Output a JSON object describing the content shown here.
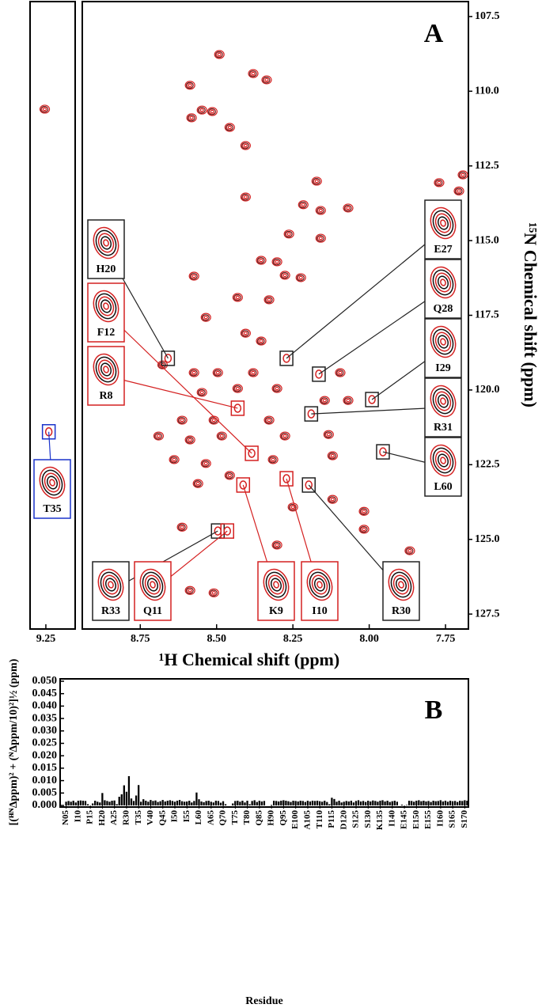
{
  "chart_data": [
    {
      "type": "scatter",
      "xlim": [
        9.32,
        9.12
      ],
      "xticks": [
        9.25
      ],
      "ylim": [
        107,
        128
      ],
      "color": "#d42020",
      "x": [
        9.255
      ],
      "y": [
        110.6
      ],
      "annotations": [
        {
          "label": "T35",
          "x": 9.237,
          "y": 121.4,
          "color": "#1a33cc"
        }
      ]
    },
    {
      "type": "scatter",
      "panel_label": "A",
      "xlabel": "¹H Chemical shift (ppm)",
      "ylabel": "¹⁵N Chemical shift (ppm)",
      "xlim": [
        8.94,
        7.675
      ],
      "ylim": [
        107,
        128
      ],
      "color": "#d42020",
      "xticks": [
        8.75,
        {
          "value": 8.5,
          "label": "8.50"
        },
        8.25,
        {
          "value": 8,
          "label": "8.00"
        },
        7.75
      ],
      "yticks": [
        107.5,
        {
          "value": 110,
          "label": "110.0"
        },
        112.5,
        {
          "value": 115,
          "label": "115.0"
        },
        117.5,
        {
          "value": 120,
          "label": "120.0"
        },
        122.5,
        {
          "value": 125,
          "label": "125.0"
        },
        127.5
      ],
      "x": [
        8.491,
        8.38,
        8.336,
        8.587,
        8.548,
        8.582,
        8.514,
        8.457,
        8.405,
        8.172,
        8.405,
        8.216,
        8.069,
        8.159,
        8.263,
        8.159,
        8.354,
        8.302,
        8.574,
        8.276,
        8.224,
        8.431,
        8.328,
        8.535,
        8.405,
        8.354,
        8.677,
        8.574,
        8.496,
        8.38,
        8.095,
        8.548,
        8.431,
        8.302,
        8.146,
        8.069,
        8.613,
        8.509,
        8.328,
        8.69,
        8.587,
        8.483,
        8.276,
        8.133,
        8.639,
        8.535,
        8.315,
        8.12,
        8.561,
        8.457,
        8.25,
        8.12,
        8.613,
        8.302,
        8.017,
        8.017,
        8.587,
        8.509,
        8.302,
        7.693,
        7.771,
        7.706,
        7.867
      ],
      "y": [
        108.77,
        109.41,
        109.62,
        109.8,
        110.63,
        110.89,
        110.68,
        111.21,
        111.82,
        113.01,
        113.54,
        113.8,
        113.91,
        113.99,
        114.78,
        114.92,
        115.66,
        115.71,
        116.19,
        116.16,
        116.24,
        116.9,
        116.98,
        117.57,
        118.1,
        118.36,
        119.16,
        119.42,
        119.42,
        119.42,
        119.42,
        120.08,
        119.95,
        119.95,
        120.35,
        120.35,
        121.01,
        121.01,
        121.01,
        121.54,
        121.67,
        121.54,
        121.54,
        121.49,
        122.33,
        122.46,
        122.33,
        122.2,
        123.13,
        122.86,
        123.92,
        123.66,
        124.59,
        125.19,
        124.06,
        124.66,
        126.71,
        126.79,
        126.04,
        112.8,
        113.06,
        113.34,
        125.38
      ],
      "annotations": [
        {
          "label": "H20",
          "x": 8.659,
          "y": 118.94,
          "color": "#222"
        },
        {
          "label": "F12",
          "x": 8.385,
          "y": 122.12,
          "color": "#d42020"
        },
        {
          "label": "R8",
          "x": 8.431,
          "y": 120.61,
          "color": "#d42020"
        },
        {
          "label": "E27",
          "x": 8.271,
          "y": 118.94,
          "color": "#222"
        },
        {
          "label": "Q28",
          "x": 8.165,
          "y": 119.47,
          "color": "#222"
        },
        {
          "label": "I29",
          "x": 7.991,
          "y": 120.32,
          "color": "#222"
        },
        {
          "label": "R31",
          "x": 8.19,
          "y": 120.8,
          "color": "#222"
        },
        {
          "label": "L60",
          "x": 7.955,
          "y": 122.07,
          "color": "#222"
        },
        {
          "label": "R33",
          "x": 8.496,
          "y": 124.72,
          "color": "#222"
        },
        {
          "label": "Q11",
          "x": 8.465,
          "y": 124.72,
          "color": "#d42020"
        },
        {
          "label": "K9",
          "x": 8.413,
          "y": 123.18,
          "color": "#d42020"
        },
        {
          "label": "I10",
          "x": 8.271,
          "y": 122.97,
          "color": "#d42020"
        },
        {
          "label": "R30",
          "x": 8.198,
          "y": 123.18,
          "color": "#222"
        }
      ]
    },
    {
      "type": "bar",
      "panel_label": "B",
      "xlabel": "Residue",
      "ylabel": "[(ᴴᴺΔppm)² + (ᴺΔppm/10)²]½ (ppm)",
      "color": "#000",
      "ylim": [
        0,
        0.05
      ],
      "yticks": [
        {
          "value": 0,
          "label": "0.000"
        },
        0.005,
        {
          "value": 0.01,
          "label": "0.010"
        },
        0.015,
        {
          "value": 0.02,
          "label": "0.020"
        },
        0.025,
        {
          "value": 0.03,
          "label": "0.030"
        },
        0.035,
        {
          "value": 0.04,
          "label": "0.040"
        },
        0.045,
        {
          "value": 0.05,
          "label": "0.050"
        }
      ],
      "categories": [
        null,
        null,
        "N05",
        null,
        null,
        null,
        null,
        "I10",
        null,
        null,
        null,
        null,
        "P15",
        null,
        null,
        null,
        null,
        "H20",
        null,
        null,
        null,
        null,
        "A25",
        null,
        null,
        null,
        null,
        "R30",
        null,
        null,
        null,
        null,
        "T35",
        null,
        null,
        null,
        null,
        "V40",
        null,
        null,
        null,
        null,
        "Q45",
        null,
        null,
        null,
        null,
        "I50",
        null,
        null,
        null,
        null,
        "I55",
        null,
        null,
        null,
        null,
        "L60",
        null,
        null,
        null,
        null,
        "A65",
        null,
        null,
        null,
        null,
        "Q70",
        null,
        null,
        null,
        null,
        "T75",
        null,
        null,
        null,
        null,
        "T80",
        null,
        null,
        null,
        null,
        "Q85",
        null,
        null,
        null,
        null,
        "H90",
        null,
        null,
        null,
        null,
        "Q95",
        null,
        null,
        null,
        null,
        "E100",
        null,
        null,
        null,
        null,
        "A105",
        null,
        null,
        null,
        null,
        "T110",
        null,
        null,
        null,
        null,
        "P115",
        null,
        null,
        null,
        null,
        "D120",
        null,
        null,
        null,
        null,
        "S125",
        null,
        null,
        null,
        null,
        "S130",
        null,
        null,
        null,
        null,
        "K135",
        null,
        null,
        null,
        null,
        "I140",
        null,
        null,
        null,
        null,
        "E145",
        null,
        null,
        null,
        null,
        "E150",
        null,
        null,
        null,
        null,
        "E155",
        null,
        null,
        null,
        null,
        "I160",
        null,
        null,
        null,
        null,
        "S165",
        null,
        null,
        null,
        null,
        "S170",
        null
      ],
      "values": [
        0,
        0,
        0.0015,
        0.0018,
        0.0015,
        0.0019,
        0.0012,
        0.0019,
        0.002,
        0.0019,
        0.0018,
        0.0005,
        0,
        0.0008,
        0.0019,
        0.0015,
        0.0012,
        0.005,
        0.0021,
        0.0018,
        0.0015,
        0.0019,
        0.002,
        0.0005,
        0.0035,
        0.0045,
        0.0081,
        0.0055,
        0.0118,
        0.0028,
        0.0018,
        0.004,
        0.0082,
        0.0015,
        0.0025,
        0.0019,
        0.0015,
        0.0022,
        0.0018,
        0.002,
        0.0014,
        0.0017,
        0.0022,
        0.0016,
        0.0019,
        0.0021,
        0.0018,
        0.0015,
        0.0019,
        0.0022,
        0.0017,
        0.0015,
        0.0016,
        0.0019,
        0.0012,
        0.0018,
        0.0052,
        0.0025,
        0.0016,
        0.0013,
        0.0018,
        0.0019,
        0.0015,
        0.0012,
        0.0019,
        0.0018,
        0.0011,
        0.0017,
        0.0005,
        0,
        0,
        0.0008,
        0.0018,
        0.0019,
        0.0015,
        0.0019,
        0.0012,
        0.0019,
        0.0005,
        0.0018,
        0.0021,
        0.0014,
        0.0019,
        0.0016,
        0.0018,
        0,
        0,
        0.0002,
        0.0019,
        0.0018,
        0.0016,
        0.0019,
        0.0021,
        0.0019,
        0.0017,
        0.0014,
        0.0019,
        0.0018,
        0.0016,
        0.0019,
        0.0018,
        0.0014,
        0.0019,
        0.0016,
        0.0019,
        0.0018,
        0.0019,
        0.0017,
        0.0015,
        0.0019,
        0.0014,
        0.0005,
        0.0031,
        0.0026,
        0.0015,
        0.0019,
        0.0012,
        0.0015,
        0.0018,
        0.0016,
        0.0019,
        0.0012,
        0.0018,
        0.0021,
        0.0016,
        0.0018,
        0.0014,
        0.0019,
        0.0016,
        0.002,
        0.0018,
        0.0015,
        0.0019,
        0.0021,
        0.0016,
        0.0019,
        0.0014,
        0.0017,
        0.0019,
        0.0015,
        0,
        0.0003,
        0,
        0.0002,
        0.0019,
        0.0018,
        0.0015,
        0.0019,
        0.0021,
        0.0017,
        0.0019,
        0.0016,
        0.0018,
        0.0014,
        0.0019,
        0.0017,
        0.0018,
        0.0021,
        0.0016,
        0.0019,
        0.0015,
        0.0019,
        0.0017,
        0.0018,
        0.0014,
        0.0019,
        0.0018,
        0.0021,
        0.0019
      ]
    }
  ]
}
